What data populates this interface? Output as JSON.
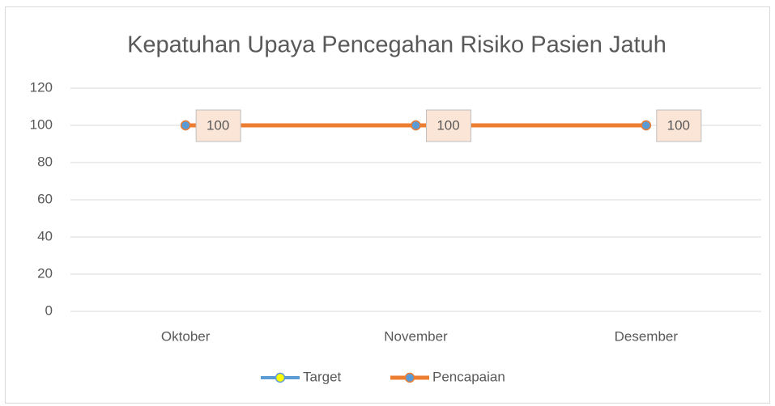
{
  "chart_data": {
    "type": "line",
    "title": "Kepatuhan Upaya Pencegahan Risiko Pasien Jatuh",
    "categories": [
      "Oktober",
      "November",
      "Desember"
    ],
    "series": [
      {
        "name": "Target",
        "color": "#5b9bd5",
        "marker_color": "#ffff00",
        "values": [
          100,
          100,
          100
        ]
      },
      {
        "name": "Pencapaian",
        "color": "#ed7d31",
        "marker_color": "#5b9bd5",
        "values": [
          100,
          100,
          100
        ],
        "data_labels": true
      }
    ],
    "ylim": [
      0,
      120
    ],
    "yticks": [
      0,
      20,
      40,
      60,
      80,
      100,
      120
    ],
    "grid": true,
    "legend": "bottom"
  }
}
